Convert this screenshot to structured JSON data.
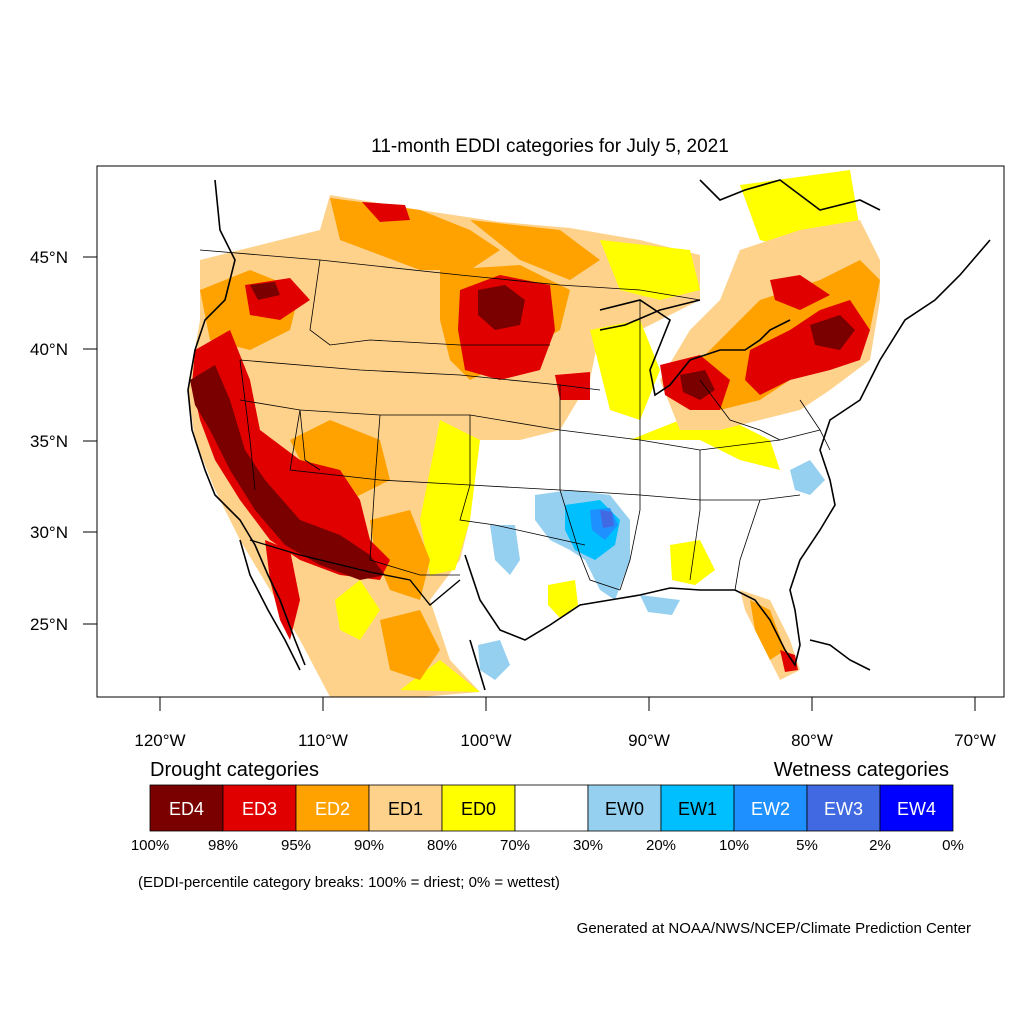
{
  "title": "11-month EDDI categories for July 5, 2021",
  "lat_labels": [
    "45°N",
    "40°N",
    "35°N",
    "30°N",
    "25°N"
  ],
  "lon_labels": [
    "120°W",
    "110°W",
    "100°W",
    "90°W",
    "80°W",
    "70°W"
  ],
  "legend": {
    "drought_title": "Drought categories",
    "wetness_title": "Wetness categories",
    "categories": [
      {
        "label": "ED4",
        "color": "#7a0000",
        "text_color": "#ffffff"
      },
      {
        "label": "ED3",
        "color": "#e00000",
        "text_color": "#ffffff"
      },
      {
        "label": "ED2",
        "color": "#ffa200",
        "text_color": "#ffffff"
      },
      {
        "label": "ED1",
        "color": "#ffd28c",
        "text_color": "#000000"
      },
      {
        "label": "ED0",
        "color": "#ffff00",
        "text_color": "#000000"
      },
      {
        "label": "",
        "color": "#ffffff",
        "text_color": "#000000"
      },
      {
        "label": "EW0",
        "color": "#96d0f0",
        "text_color": "#000000"
      },
      {
        "label": "EW1",
        "color": "#00bfff",
        "text_color": "#000000"
      },
      {
        "label": "EW2",
        "color": "#1e90ff",
        "text_color": "#ffffff"
      },
      {
        "label": "EW3",
        "color": "#4169e1",
        "text_color": "#ffffff"
      },
      {
        "label": "EW4",
        "color": "#0000ff",
        "text_color": "#ffffff"
      }
    ],
    "breaks": [
      "100%",
      "98%",
      "95%",
      "90%",
      "80%",
      "70%",
      "30%",
      "20%",
      "10%",
      "5%",
      "2%",
      "0%"
    ],
    "note": "(EDDI-percentile category breaks: 100% = driest; 0% = wettest)"
  },
  "credit": "Generated at NOAA/NWS/NCEP/Climate Prediction Center"
}
